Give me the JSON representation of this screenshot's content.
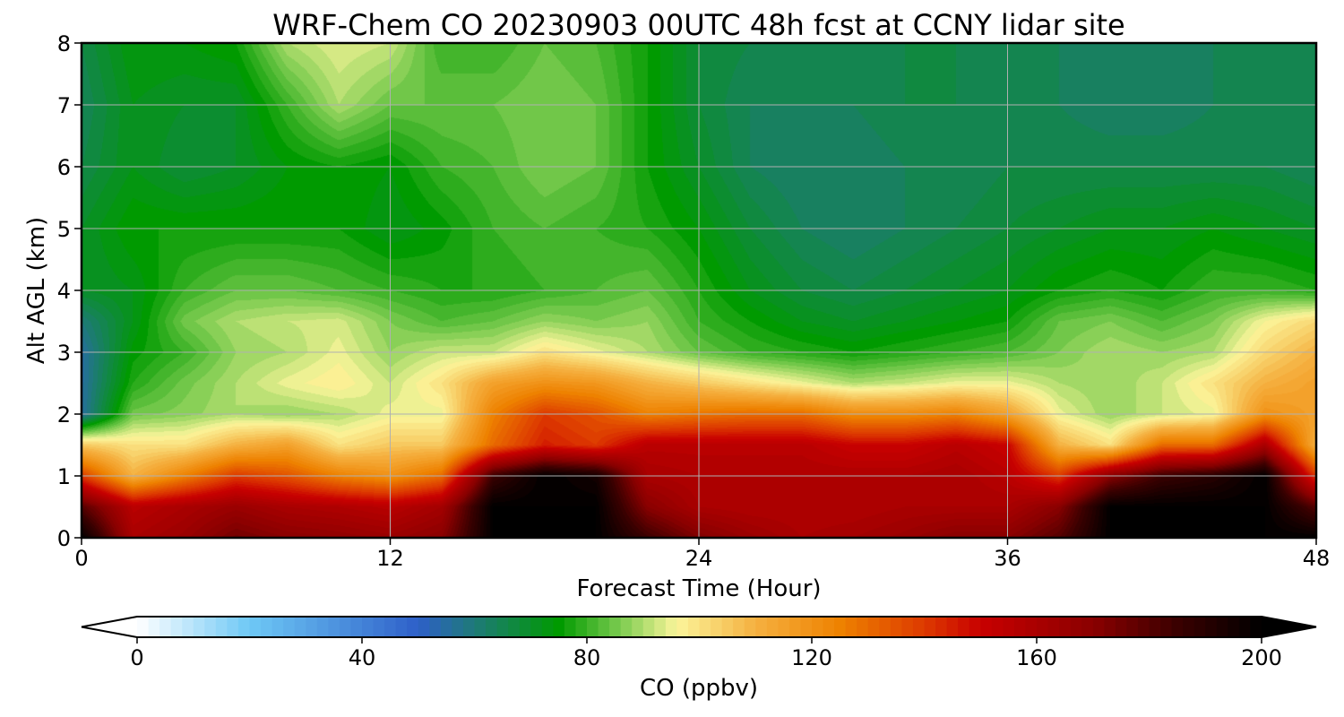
{
  "chart_data": {
    "type": "heatmap",
    "title": "WRF-Chem CO  20230903 00UTC 48h fcst at CCNY lidar site",
    "xlabel": "Forecast Time (Hour)",
    "ylabel": "Alt AGL (km)",
    "xlim": [
      0,
      48
    ],
    "ylim": [
      0,
      8
    ],
    "xticks": [
      0,
      12,
      24,
      36,
      48
    ],
    "yticks": [
      0,
      1,
      2,
      3,
      4,
      5,
      6,
      7,
      8
    ],
    "grid": true,
    "colorbar": {
      "label": "CO  (ppbv)",
      "min": 0,
      "max": 200,
      "ticks": [
        0,
        40,
        80,
        120,
        160,
        200
      ],
      "extend": "both",
      "colors": [
        {
          "v": 0,
          "c": "#ffffff"
        },
        {
          "v": 20,
          "c": "#6ec8f5"
        },
        {
          "v": 50,
          "c": "#2e5fc8"
        },
        {
          "v": 60,
          "c": "#1e7a78"
        },
        {
          "v": 75,
          "c": "#009a00"
        },
        {
          "v": 86,
          "c": "#7ccc50"
        },
        {
          "v": 96,
          "c": "#fbf59a"
        },
        {
          "v": 110,
          "c": "#f5b040"
        },
        {
          "v": 125,
          "c": "#ee8200"
        },
        {
          "v": 140,
          "c": "#dd3a00"
        },
        {
          "v": 150,
          "c": "#c80000"
        },
        {
          "v": 170,
          "c": "#8a0000"
        },
        {
          "v": 185,
          "c": "#3a0000"
        },
        {
          "v": 200,
          "c": "#000000"
        }
      ]
    },
    "hours": [
      0,
      2,
      4,
      6,
      8,
      10,
      12,
      14,
      16,
      18,
      20,
      22,
      24,
      26,
      28,
      30,
      32,
      34,
      36,
      38,
      40,
      42,
      44,
      46,
      48
    ],
    "altitudes_km": [
      0,
      0.5,
      1,
      1.5,
      2,
      2.5,
      3,
      3.5,
      4,
      5,
      6,
      7,
      8
    ],
    "co_ppbv": [
      [
        200,
        160,
        165,
        175,
        170,
        168,
        165,
        170,
        200,
        200,
        200,
        185,
        172,
        165,
        160,
        162,
        165,
        170,
        170,
        180,
        200,
        200,
        200,
        200,
        200
      ],
      [
        180,
        155,
        160,
        165,
        160,
        158,
        155,
        162,
        200,
        200,
        200,
        170,
        160,
        158,
        158,
        158,
        160,
        160,
        160,
        170,
        200,
        200,
        200,
        200,
        180
      ],
      [
        140,
        110,
        125,
        140,
        135,
        125,
        120,
        130,
        185,
        200,
        195,
        160,
        158,
        158,
        158,
        158,
        158,
        160,
        155,
        140,
        170,
        185,
        190,
        200,
        140
      ],
      [
        105,
        100,
        100,
        110,
        115,
        100,
        105,
        105,
        130,
        145,
        140,
        155,
        155,
        155,
        155,
        150,
        150,
        155,
        150,
        110,
        100,
        130,
        130,
        160,
        110
      ],
      [
        55,
        85,
        87,
        90,
        88,
        90,
        95,
        95,
        125,
        140,
        135,
        125,
        128,
        130,
        130,
        122,
        122,
        125,
        115,
        95,
        88,
        92,
        95,
        120,
        115
      ],
      [
        55,
        78,
        85,
        90,
        95,
        98,
        92,
        100,
        115,
        120,
        118,
        110,
        105,
        100,
        95,
        90,
        92,
        95,
        95,
        90,
        88,
        92,
        100,
        110,
        115
      ],
      [
        55,
        75,
        80,
        88,
        90,
        95,
        88,
        92,
        92,
        100,
        95,
        90,
        84,
        80,
        78,
        76,
        78,
        80,
        82,
        86,
        90,
        88,
        90,
        102,
        110
      ],
      [
        60,
        72,
        85,
        90,
        92,
        93,
        86,
        82,
        84,
        88,
        86,
        88,
        80,
        76,
        72,
        70,
        72,
        74,
        76,
        84,
        86,
        82,
        86,
        96,
        102
      ],
      [
        70,
        72,
        80,
        84,
        84,
        82,
        80,
        78,
        78,
        80,
        82,
        84,
        78,
        72,
        68,
        66,
        68,
        70,
        72,
        76,
        78,
        76,
        80,
        80,
        78
      ],
      [
        70,
        76,
        76,
        76,
        76,
        76,
        72,
        75,
        80,
        82,
        80,
        78,
        74,
        68,
        64,
        62,
        64,
        66,
        68,
        70,
        72,
        72,
        74,
        72,
        70
      ],
      [
        66,
        72,
        68,
        70,
        74,
        76,
        74,
        80,
        82,
        86,
        84,
        76,
        70,
        64,
        62,
        62,
        64,
        64,
        66,
        66,
        66,
        66,
        66,
        66,
        64
      ],
      [
        64,
        72,
        70,
        70,
        80,
        90,
        84,
        84,
        84,
        86,
        84,
        76,
        68,
        64,
        64,
        64,
        66,
        66,
        64,
        64,
        62,
        62,
        64,
        66,
        64
      ],
      [
        66,
        74,
        74,
        76,
        90,
        94,
        92,
        80,
        80,
        84,
        82,
        76,
        68,
        66,
        64,
        64,
        66,
        66,
        64,
        64,
        62,
        62,
        64,
        66,
        64
      ]
    ]
  }
}
